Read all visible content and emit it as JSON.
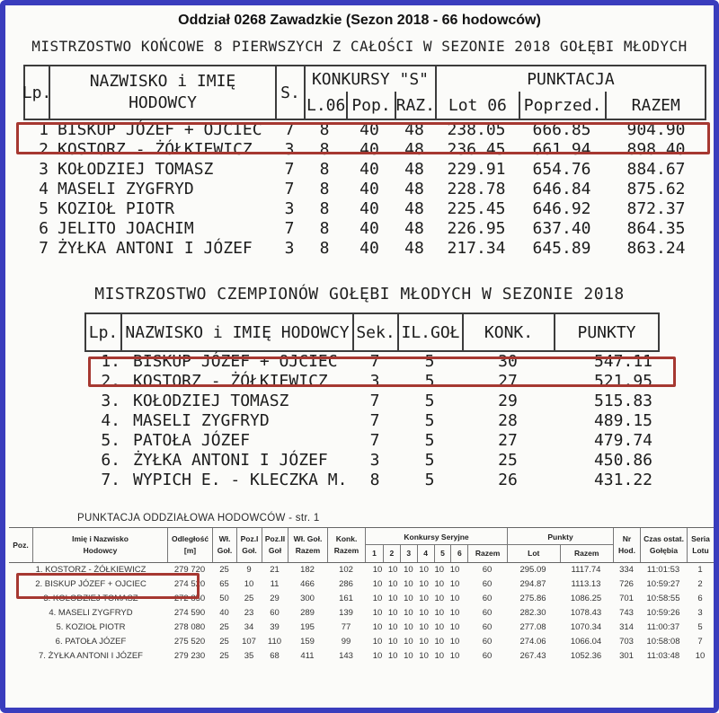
{
  "page": {
    "title": "Oddział 0268 Zawadzkie (Sezon 2018 - 66 hodowców)",
    "subtitle": "MISTRZOSTWO KOŃCOWE 8 PIERWSZYCH Z CAŁOŚCI W SEZONIE 2018 GOŁĘBI MŁODYCH",
    "border_color": "#3a3dbd",
    "highlight_color": "#a63831"
  },
  "championship_final": {
    "headers": {
      "lp": "Lp.",
      "name_line1": "NAZWISKO i IMIĘ",
      "name_line2": "HODOWCY",
      "s": "S.",
      "konkursy_group": "KONKURSY \"S\"",
      "l06": "L.06",
      "pop": "Pop.",
      "raz": "RAZ.",
      "punktacja_group": "PUNKTACJA",
      "lot06": "Lot 06",
      "poprzed": "Poprzed.",
      "razem": "RAZEM"
    },
    "rows": [
      {
        "lp": "1",
        "name": "BISKUP JÓZEF + OJCIEC",
        "s": "7",
        "l06": "8",
        "pop": "40",
        "raz": "48",
        "lot06": "238.05",
        "poprzed": "666.85",
        "razem": "904.90"
      },
      {
        "lp": "2",
        "name": "KOSTORZ - ŻÓŁKIEWICZ",
        "s": "3",
        "l06": "8",
        "pop": "40",
        "raz": "48",
        "lot06": "236.45",
        "poprzed": "661.94",
        "razem": "898.40"
      },
      {
        "lp": "3",
        "name": "KOŁODZIEJ TOMASZ",
        "s": "7",
        "l06": "8",
        "pop": "40",
        "raz": "48",
        "lot06": "229.91",
        "poprzed": "654.76",
        "razem": "884.67"
      },
      {
        "lp": "4",
        "name": "MASELI ZYGFRYD",
        "s": "7",
        "l06": "8",
        "pop": "40",
        "raz": "48",
        "lot06": "228.78",
        "poprzed": "646.84",
        "razem": "875.62"
      },
      {
        "lp": "5",
        "name": "KOZIOŁ PIOTR",
        "s": "3",
        "l06": "8",
        "pop": "40",
        "raz": "48",
        "lot06": "225.45",
        "poprzed": "646.92",
        "razem": "872.37"
      },
      {
        "lp": "6",
        "name": "JELITO JOACHIM",
        "s": "7",
        "l06": "8",
        "pop": "40",
        "raz": "48",
        "lot06": "226.95",
        "poprzed": "637.40",
        "razem": "864.35"
      },
      {
        "lp": "7",
        "name": "ŻYŁKA ANTONI I JÓZEF",
        "s": "3",
        "l06": "8",
        "pop": "40",
        "raz": "48",
        "lot06": "217.34",
        "poprzed": "645.89",
        "razem": "863.24"
      }
    ]
  },
  "championship_champions": {
    "title": "MISTRZOSTWO CZEMPIONÓW GOŁĘBI MŁODYCH W SEZONIE 2018",
    "headers": {
      "lp": "Lp.",
      "name": "NAZWISKO i IMIĘ HODOWCY",
      "sek": "Sek.",
      "ilgol": "IL.GOŁ",
      "konk": "KONK.",
      "punkty": "PUNKTY"
    },
    "rows": [
      {
        "lp": "1.",
        "name": "BISKUP JÓZEF + OJCIEC",
        "sek": "7",
        "ilgol": "5",
        "konk": "30",
        "punkty": "547.11"
      },
      {
        "lp": "2.",
        "name": "KOSTORZ - ŻÓŁKIEWICZ",
        "sek": "3",
        "ilgol": "5",
        "konk": "27",
        "punkty": "521.95"
      },
      {
        "lp": "3.",
        "name": "KOŁODZIEJ TOMASZ",
        "sek": "7",
        "ilgol": "5",
        "konk": "29",
        "punkty": "515.83"
      },
      {
        "lp": "4.",
        "name": "MASELI ZYGFRYD",
        "sek": "7",
        "ilgol": "5",
        "konk": "28",
        "punkty": "489.15"
      },
      {
        "lp": "5.",
        "name": "PATOŁA JÓZEF",
        "sek": "7",
        "ilgol": "5",
        "konk": "27",
        "punkty": "479.74"
      },
      {
        "lp": "6.",
        "name": "ŻYŁKA ANTONI I JÓZEF",
        "sek": "3",
        "ilgol": "5",
        "konk": "25",
        "punkty": "450.86"
      },
      {
        "lp": "7.",
        "name": "WYPICH E. - KLECZKA M.",
        "sek": "8",
        "ilgol": "5",
        "konk": "26",
        "punkty": "431.22"
      }
    ]
  },
  "division_scoring": {
    "title": "PUNKTACJA ODDZIAŁOWA HODOWCÓW - str. 1",
    "headers": {
      "poz": "Poz.",
      "name_line1": "Imię i Nazwisko",
      "name_line2": "Hodowcy",
      "odl_line1": "Odległość",
      "odl_line2": "[m]",
      "wl_line1": "Wł.",
      "wl_line2": "Goł.",
      "poz1_line1": "Poz.I",
      "poz1_line2": "Goł.",
      "poz2_line1": "Poz.II",
      "poz2_line2": "Goł",
      "wlrazem_line1": "Wł. Goł.",
      "wlrazem_line2": "Razem",
      "konkrazem_line1": "Konk.",
      "konkrazem_line2": "Razem",
      "seryjne_group": "Konkursy Seryjne",
      "s1": "1",
      "s2": "2",
      "s3": "3",
      "s4": "4",
      "s5": "5",
      "s6": "6",
      "s_razem": "Razem",
      "punkty_group": "Punkty",
      "lot": "Lot",
      "razem": "Razem",
      "nr_line1": "Nr",
      "nr_line2": "Hod.",
      "czas_line1": "Czas ostat.",
      "czas_line2": "Gołębia",
      "seria_line1": "Seria",
      "seria_line2": "Lotu"
    },
    "rows": [
      {
        "name": "1. KOSTORZ - ŻÓŁKIEWICZ",
        "odl": "279 720",
        "wl": "25",
        "poz1": "9",
        "poz2": "21",
        "wl_razem": "182",
        "konk_razem": "102",
        "seryjne": "10 10 10 10 10 10",
        "s_razem": "60",
        "lot": "295.09",
        "razem": "1117.74",
        "nr": "334",
        "czas": "11:01:53",
        "seria": "1"
      },
      {
        "name": "2. BISKUP JÓZEF + OJCIEC",
        "odl": "274 520",
        "wl": "65",
        "poz1": "10",
        "poz2": "11",
        "wl_razem": "466",
        "konk_razem": "286",
        "seryjne": "10 10 10 10 10 10",
        "s_razem": "60",
        "lot": "294.87",
        "razem": "1113.13",
        "nr": "726",
        "czas": "10:59:27",
        "seria": "2"
      },
      {
        "name": "3. KOŁODZIEJ TOMASZ",
        "odl": "272 850",
        "wl": "50",
        "poz1": "25",
        "poz2": "29",
        "wl_razem": "300",
        "konk_razem": "161",
        "seryjne": "10 10 10 10 10 10",
        "s_razem": "60",
        "lot": "275.86",
        "razem": "1086.25",
        "nr": "701",
        "czas": "10:58:55",
        "seria": "6"
      },
      {
        "name": "4. MASELI ZYGFRYD",
        "odl": "274 590",
        "wl": "40",
        "poz1": "23",
        "poz2": "60",
        "wl_razem": "289",
        "konk_razem": "139",
        "seryjne": "10 10 10 10 10 10",
        "s_razem": "60",
        "lot": "282.30",
        "razem": "1078.43",
        "nr": "743",
        "czas": "10:59:26",
        "seria": "3"
      },
      {
        "name": "5. KOZIOŁ PIOTR",
        "odl": "278 080",
        "wl": "25",
        "poz1": "34",
        "poz2": "39",
        "wl_razem": "195",
        "konk_razem": "77",
        "seryjne": "10 10 10 10 10 10",
        "s_razem": "60",
        "lot": "277.08",
        "razem": "1070.34",
        "nr": "314",
        "czas": "11:00:37",
        "seria": "5"
      },
      {
        "name": "6. PATOŁA JÓZEF",
        "odl": "275 520",
        "wl": "25",
        "poz1": "107",
        "poz2": "110",
        "wl_razem": "159",
        "konk_razem": "99",
        "seryjne": "10 10 10 10 10 10",
        "s_razem": "60",
        "lot": "274.06",
        "razem": "1066.04",
        "nr": "703",
        "czas": "10:58:08",
        "seria": "7"
      },
      {
        "name": "7. ŻYŁKA ANTONI I JÓZEF",
        "odl": "279 230",
        "wl": "25",
        "poz1": "35",
        "poz2": "68",
        "wl_razem": "411",
        "konk_razem": "143",
        "seryjne": "10 10 10 10 10 10",
        "s_razem": "60",
        "lot": "267.43",
        "razem": "1052.36",
        "nr": "301",
        "czas": "11:03:48",
        "seria": "10"
      }
    ]
  }
}
